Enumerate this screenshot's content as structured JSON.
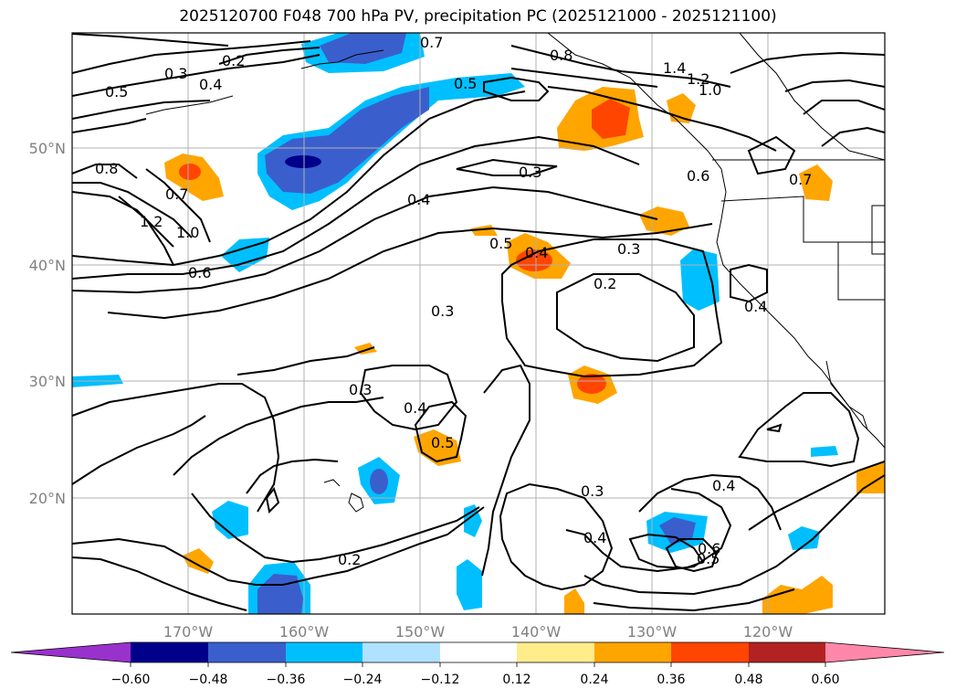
{
  "title": "2025120700 F048 700 hPa PV, precipitation PC (2025121000 - 2025121100)",
  "lon_ticks": [
    "170°W",
    "160°W",
    "150°W",
    "140°W",
    "130°W",
    "120°W"
  ],
  "lat_ticks": [
    "50°N",
    "40°N",
    "30°N",
    "20°N"
  ],
  "colorbar": {
    "ticks": [
      "−0.60",
      "−0.48",
      "−0.36",
      "−0.24",
      "−0.12",
      "0.12",
      "0.24",
      "0.36",
      "0.48",
      "0.60"
    ],
    "colors": [
      "#9932cc",
      "#00008b",
      "#3a5fcd",
      "#00bfff",
      "#b0e2ff",
      "#ffffff",
      "#ffec8b",
      "#ffa500",
      "#ff4500",
      "#b22222",
      "#ff88aa"
    ]
  },
  "contour_labels": [
    "0.3",
    "0.2",
    "0.5",
    "0.4",
    "0.7",
    "0.8",
    "1.4",
    "1.2",
    "1.0",
    "0.6",
    "0.5",
    "0.4",
    "0.3",
    "0.2",
    "0.3",
    "0.4",
    "0.5",
    "0.3",
    "0.4",
    "0.3",
    "0.6",
    "0.5",
    "0.4",
    "0.2",
    "0.3",
    "0.4",
    "0.7",
    "0.4",
    "0.5",
    "0.8",
    "0.7",
    "1.2",
    "1.0",
    "0.6"
  ]
}
